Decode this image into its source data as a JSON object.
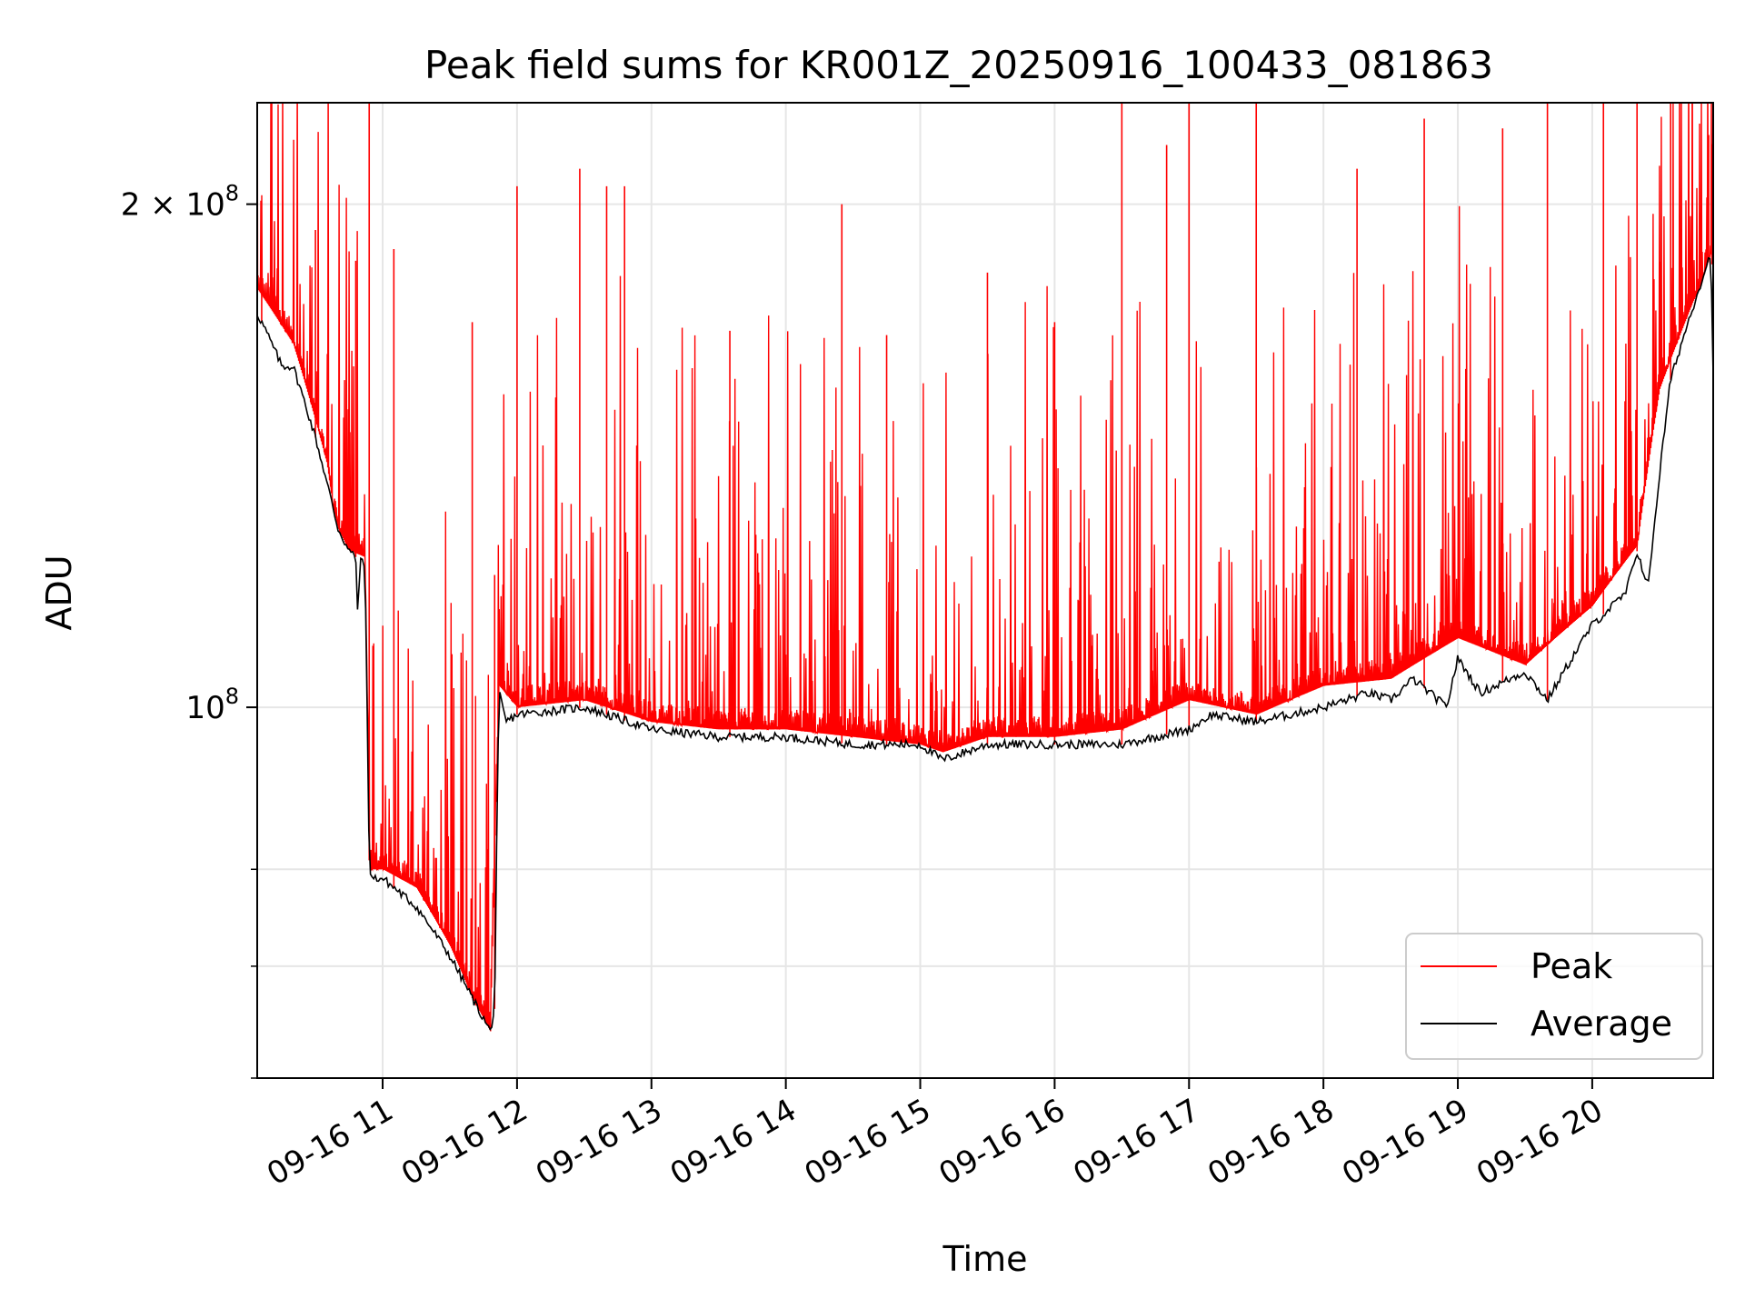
{
  "chart_data": {
    "type": "line",
    "title": "Peak field sums for KR001Z_20250916_100433_081863",
    "xlabel": "Time",
    "ylabel": "ADU",
    "x_range": [
      "2025-09-16 10:04",
      "2025-09-16 20:54"
    ],
    "y_scale": "log",
    "ylim": [
      60000000,
      230000000
    ],
    "x_ticks": [
      "09-16 11",
      "09-16 12",
      "09-16 13",
      "09-16 14",
      "09-16 15",
      "09-16 16",
      "09-16 17",
      "09-16 18",
      "09-16 19",
      "09-16 20"
    ],
    "y_ticks": [
      {
        "value": 100000000,
        "base": "10",
        "exp": "8",
        "coef": ""
      },
      {
        "value": 200000000,
        "base": "10",
        "exp": "8",
        "coef": "2 × "
      }
    ],
    "grid": true,
    "legend_position": "lower right",
    "series": [
      {
        "name": "Peak",
        "color": "#ff0000",
        "description_note": "",
        "x": [
          "10:04",
          "10:20",
          "10:35",
          "10:40",
          "10:52",
          "10:54",
          "11:00",
          "11:15",
          "11:30",
          "11:40",
          "11:48",
          "11:52",
          "12:00",
          "12:30",
          "13:00",
          "13:30",
          "14:00",
          "14:30",
          "15:00",
          "15:10",
          "15:30",
          "16:00",
          "16:30",
          "17:00",
          "17:30",
          "18:00",
          "18:30",
          "19:00",
          "19:30",
          "20:00",
          "20:20",
          "20:30",
          "20:45",
          "20:54"
        ],
        "y": [
          178000000,
          165000000,
          140000000,
          125000000,
          123000000,
          80000000,
          80000000,
          78000000,
          72000000,
          67000000,
          64000000,
          103000000,
          100000000,
          101000000,
          98000000,
          97000000,
          97000000,
          96000000,
          95000000,
          94000000,
          96000000,
          96000000,
          97000000,
          101000000,
          99000000,
          103000000,
          104000000,
          110000000,
          106000000,
          115000000,
          125000000,
          155000000,
          175000000,
          185000000
        ],
        "spikes": [
          {
            "x": "10:06",
            "y": 178000000
          },
          {
            "x": "10:30",
            "y": 193000000
          },
          {
            "x": "10:48",
            "y": 185000000
          },
          {
            "x": "10:54",
            "y": 237000000
          },
          {
            "x": "11:05",
            "y": 188000000
          },
          {
            "x": "11:40",
            "y": 170000000
          },
          {
            "x": "11:50",
            "y": 120000000
          },
          {
            "x": "12:00",
            "y": 205000000
          },
          {
            "x": "12:28",
            "y": 210000000
          },
          {
            "x": "12:40",
            "y": 205000000
          },
          {
            "x": "12:48",
            "y": 205000000
          },
          {
            "x": "13:35",
            "y": 168000000
          },
          {
            "x": "14:25",
            "y": 200000000
          },
          {
            "x": "14:45",
            "y": 167000000
          },
          {
            "x": "15:30",
            "y": 182000000
          },
          {
            "x": "16:00",
            "y": 170000000
          },
          {
            "x": "16:30",
            "y": 238000000
          },
          {
            "x": "16:50",
            "y": 217000000
          },
          {
            "x": "17:00",
            "y": 245000000
          },
          {
            "x": "17:30",
            "y": 230000000
          },
          {
            "x": "18:15",
            "y": 210000000
          },
          {
            "x": "18:45",
            "y": 225000000
          },
          {
            "x": "19:20",
            "y": 222000000
          },
          {
            "x": "19:40",
            "y": 240000000
          },
          {
            "x": "20:05",
            "y": 250000000
          },
          {
            "x": "20:20",
            "y": 255000000
          },
          {
            "x": "20:35",
            "y": 250000000
          },
          {
            "x": "20:52",
            "y": 220000000
          }
        ]
      },
      {
        "name": "Average",
        "color": "#000000",
        "x": [
          "10:04",
          "10:06",
          "10:15",
          "10:20",
          "10:30",
          "10:40",
          "10:45",
          "10:48",
          "10:49",
          "10:50",
          "10:52",
          "10:54",
          "10:55",
          "11:00",
          "11:15",
          "11:30",
          "11:40",
          "11:48",
          "11:50",
          "11:52",
          "11:55",
          "12:00",
          "12:30",
          "13:00",
          "13:30",
          "14:00",
          "14:30",
          "15:00",
          "15:10",
          "15:30",
          "16:00",
          "16:30",
          "17:00",
          "17:10",
          "17:30",
          "18:00",
          "18:20",
          "18:30",
          "18:40",
          "18:55",
          "19:00",
          "19:10",
          "19:30",
          "19:40",
          "20:00",
          "20:15",
          "20:20",
          "20:25",
          "20:35",
          "20:50",
          "20:53",
          "20:54"
        ],
        "y": [
          172000000,
          170000000,
          160000000,
          160000000,
          145000000,
          128000000,
          124000000,
          123000000,
          112000000,
          123000000,
          122000000,
          81000000,
          79000000,
          79000000,
          76000000,
          71000000,
          67000000,
          64000000,
          66000000,
          102000000,
          98000000,
          99000000,
          100000000,
          97000000,
          96000000,
          96000000,
          95000000,
          95000000,
          93000000,
          95000000,
          95000000,
          95000000,
          97000000,
          99000000,
          98000000,
          100000000,
          102000000,
          101000000,
          104000000,
          100000000,
          107000000,
          102000000,
          105000000,
          101000000,
          112000000,
          117000000,
          124000000,
          118000000,
          157000000,
          182000000,
          187000000,
          157000000
        ]
      }
    ]
  }
}
